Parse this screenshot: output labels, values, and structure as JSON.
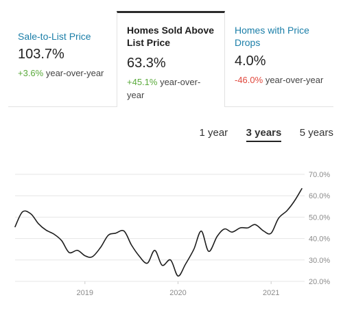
{
  "tabs": [
    {
      "title": "Sale-to-List Price",
      "value": "103.7%",
      "change": "+3.6%",
      "change_suffix": " year-over-year",
      "change_color": "#5aaa3b"
    },
    {
      "title": "Homes Sold Above List Price",
      "value": "63.3%",
      "change": "+45.1%",
      "change_suffix": " year-over-year",
      "change_color": "#5aaa3b"
    },
    {
      "title": "Homes with Price Drops",
      "value": "4.0%",
      "change": "-46.0%",
      "change_suffix": " year-over-year",
      "change_color": "#e0473c"
    }
  ],
  "ranges": [
    "1 year",
    "3 years",
    "5 years"
  ],
  "active_range": "3 years",
  "colors": {
    "link": "#1a7ea8",
    "line": "#1d1d1d",
    "grid": "#e5e5e5",
    "positive": "#5aaa3b",
    "negative": "#e0473c"
  },
  "chart_data": {
    "type": "line",
    "title": "",
    "xlabel": "",
    "ylabel": "",
    "ylim": [
      20,
      70
    ],
    "y_ticks": [
      "20.0%",
      "30.0%",
      "40.0%",
      "50.0%",
      "60.0%",
      "70.0%"
    ],
    "x_ticks": [
      {
        "label": "2019",
        "x": 2019.0
      },
      {
        "label": "2020",
        "x": 2020.0
      },
      {
        "label": "2021",
        "x": 2021.0
      }
    ],
    "xlim": [
      2018.25,
      2021.33
    ],
    "grid": true,
    "series": [
      {
        "values": [
          [
            2018.25,
            45.5
          ],
          [
            2018.33,
            52.5
          ],
          [
            2018.42,
            51.5
          ],
          [
            2018.5,
            47.0
          ],
          [
            2018.58,
            44.0
          ],
          [
            2018.67,
            42.0
          ],
          [
            2018.75,
            39.0
          ],
          [
            2018.83,
            33.5
          ],
          [
            2018.92,
            34.5
          ],
          [
            2019.0,
            32.0
          ],
          [
            2019.08,
            31.5
          ],
          [
            2019.17,
            36.0
          ],
          [
            2019.25,
            41.5
          ],
          [
            2019.33,
            42.5
          ],
          [
            2019.42,
            43.5
          ],
          [
            2019.5,
            37.0
          ],
          [
            2019.58,
            32.0
          ],
          [
            2019.67,
            28.5
          ],
          [
            2019.75,
            34.5
          ],
          [
            2019.83,
            27.5
          ],
          [
            2019.92,
            30.0
          ],
          [
            2020.0,
            22.5
          ],
          [
            2020.08,
            28.0
          ],
          [
            2020.17,
            35.0
          ],
          [
            2020.25,
            43.5
          ],
          [
            2020.33,
            34.0
          ],
          [
            2020.42,
            41.0
          ],
          [
            2020.5,
            44.5
          ],
          [
            2020.58,
            43.0
          ],
          [
            2020.67,
            45.0
          ],
          [
            2020.75,
            45.0
          ],
          [
            2020.83,
            46.5
          ],
          [
            2020.92,
            43.5
          ],
          [
            2021.0,
            42.5
          ],
          [
            2021.08,
            49.5
          ],
          [
            2021.17,
            53.0
          ],
          [
            2021.25,
            57.5
          ],
          [
            2021.33,
            63.3
          ]
        ]
      }
    ]
  }
}
